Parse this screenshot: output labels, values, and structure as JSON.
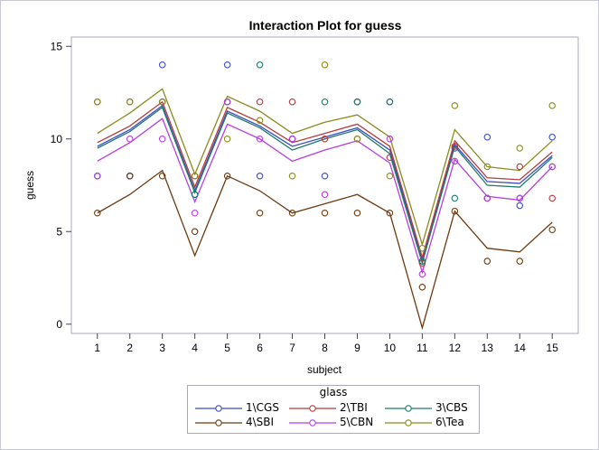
{
  "chart_data": {
    "type": "line",
    "title": "Interaction Plot for guess",
    "xlabel": "subject",
    "ylabel": "guess",
    "x": [
      1,
      2,
      3,
      4,
      5,
      6,
      7,
      8,
      9,
      10,
      11,
      12,
      13,
      14,
      15
    ],
    "yticks": [
      0,
      5,
      10,
      15
    ],
    "ylim": [
      -0.5,
      15.5
    ],
    "xlim": [
      0.2,
      15.8
    ],
    "grid": false,
    "legend": {
      "title": "glass",
      "placement": "bottom"
    },
    "series": [
      {
        "name": "1\\CGS",
        "color": "#3b4cc0",
        "points": [
          8,
          8,
          14,
          7,
          14,
          8,
          10,
          8,
          12,
          12,
          3.4,
          9.5,
          10.1,
          6.4,
          10.1
        ],
        "fit": [
          9.6,
          10.5,
          11.8,
          7.2,
          11.5,
          10.7,
          9.6,
          10.1,
          10.6,
          9.4,
          3.4,
          9.7,
          7.7,
          7.6,
          9.1
        ]
      },
      {
        "name": "2\\TBI",
        "color": "#b83a3a",
        "points": [
          12,
          12,
          12,
          8,
          12,
          12,
          12,
          10,
          12,
          9,
          3.3,
          9.6,
          6.8,
          8.5,
          6.8
        ],
        "fit": [
          9.8,
          10.7,
          12.0,
          7.4,
          11.7,
          10.9,
          9.8,
          10.3,
          10.8,
          9.6,
          3.6,
          9.9,
          7.9,
          7.8,
          9.3
        ]
      },
      {
        "name": "3\\CBS",
        "color": "#1e7a6e",
        "points": [
          8,
          8,
          12,
          7,
          12,
          14,
          10,
          12,
          12,
          12,
          3.4,
          6.8,
          6.8,
          6.8,
          8.5
        ],
        "fit": [
          9.5,
          10.4,
          11.7,
          7.1,
          11.4,
          10.6,
          9.4,
          10.0,
          10.5,
          9.2,
          3.3,
          9.6,
          7.5,
          7.4,
          9.0
        ]
      },
      {
        "name": "4\\SBI",
        "color": "#6b3a10",
        "points": [
          6,
          8,
          8,
          5,
          8,
          6,
          6,
          6,
          6,
          6,
          2,
          6.1,
          3.4,
          3.4,
          5.1
        ],
        "fit": [
          6.0,
          7.0,
          8.3,
          3.7,
          8.0,
          7.2,
          6.0,
          6.5,
          7.0,
          6.0,
          -0.2,
          6.1,
          4.1,
          3.9,
          5.5
        ]
      },
      {
        "name": "5\\CBN",
        "color": "#b63ee0",
        "points": [
          8,
          10,
          10,
          6,
          12,
          10,
          10,
          7,
          10,
          10,
          2.7,
          8.8,
          6.8,
          6.8,
          8.5
        ],
        "fit": [
          8.8,
          9.8,
          11.1,
          6.6,
          10.8,
          10.0,
          8.8,
          9.4,
          9.9,
          8.7,
          2.8,
          8.9,
          6.9,
          6.7,
          8.5
        ]
      },
      {
        "name": "6\\Tea",
        "color": "#8a8a1c",
        "points": [
          12,
          12,
          12,
          8,
          10,
          11,
          8,
          14,
          10,
          8,
          4.1,
          11.8,
          8.5,
          9.5,
          11.8
        ],
        "fit": [
          10.3,
          11.4,
          12.7,
          8.1,
          12.3,
          11.5,
          10.3,
          10.9,
          11.3,
          10.1,
          4.3,
          10.5,
          8.5,
          8.3,
          9.9
        ]
      }
    ]
  }
}
